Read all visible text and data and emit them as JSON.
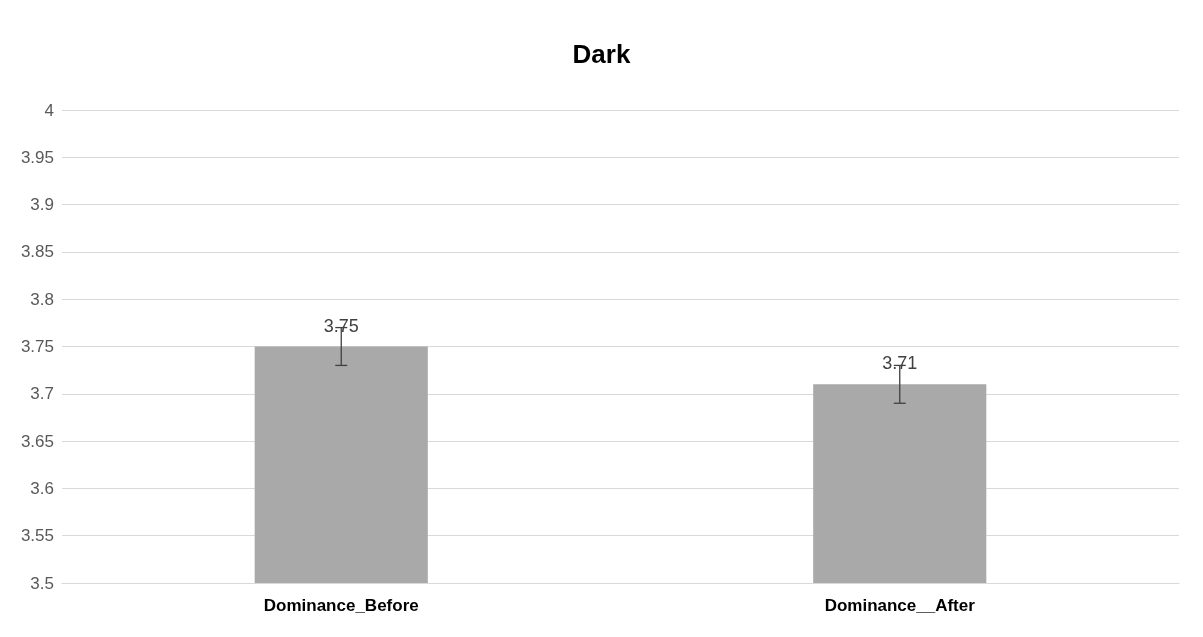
{
  "chart_data": {
    "type": "bar",
    "title": "Dark",
    "categories": [
      "Dominance_Before",
      "Dominance__After"
    ],
    "values": [
      3.75,
      3.71
    ],
    "color": "#a9a9a9",
    "errors": [
      0.02,
      0.02
    ],
    "data_labels": true,
    "ylim": [
      3.5,
      4
    ],
    "yticks": [
      3.5,
      3.55,
      3.6,
      3.65,
      3.7,
      3.75,
      3.8,
      3.85,
      3.9,
      3.95,
      4
    ],
    "grid": "y"
  }
}
